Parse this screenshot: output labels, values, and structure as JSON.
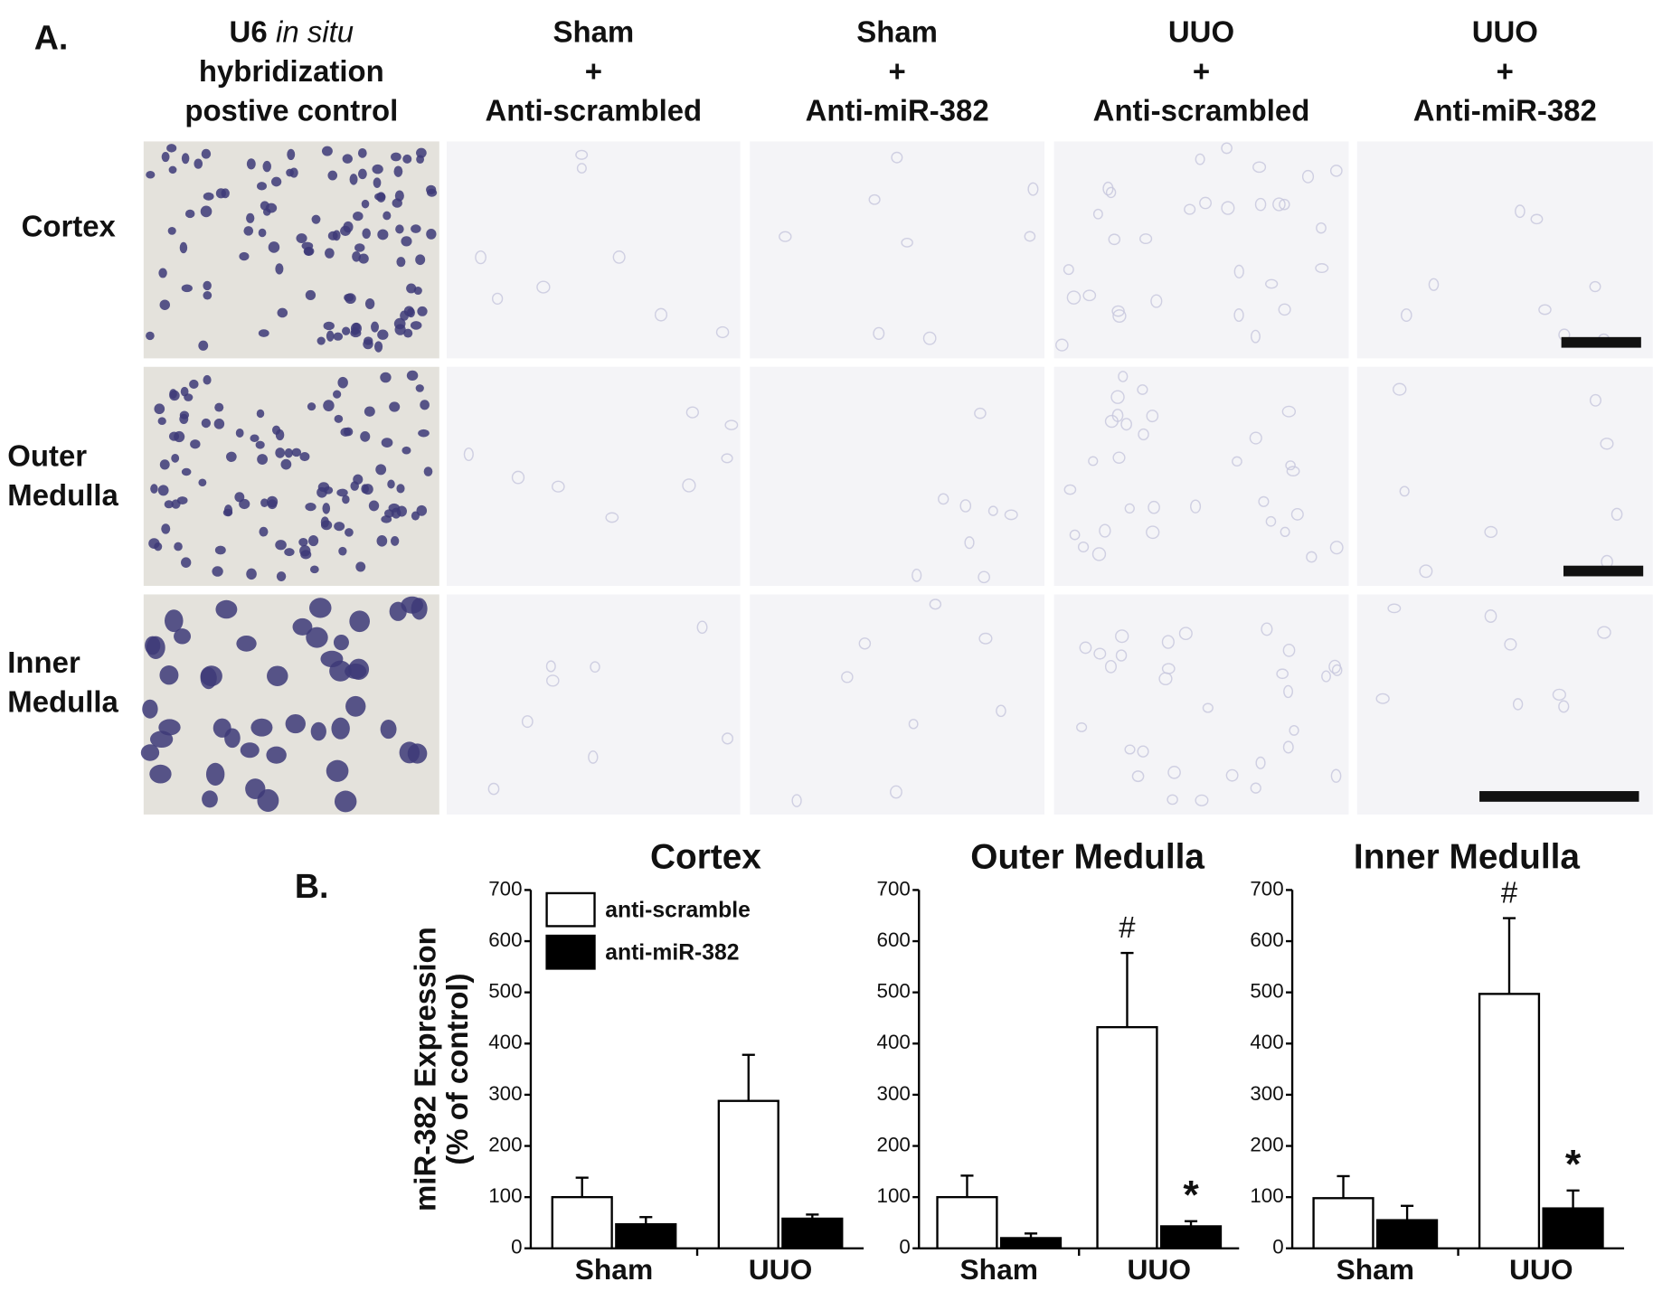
{
  "panel_a": {
    "label": "A.",
    "columns": [
      {
        "lines": [
          [
            {
              "text": "U6"
            },
            {
              "text": "in situ",
              "italic": true
            }
          ],
          [
            {
              "text": "hybridization"
            }
          ],
          [
            {
              "text": "postive control"
            }
          ]
        ]
      },
      {
        "lines": [
          [
            {
              "text": "Sham"
            }
          ],
          [
            {
              "text": "+"
            }
          ],
          [
            {
              "text": "Anti-scrambled"
            }
          ]
        ]
      },
      {
        "lines": [
          [
            {
              "text": "Sham"
            }
          ],
          [
            {
              "text": "+"
            }
          ],
          [
            {
              "text": "Anti-miR-382"
            }
          ]
        ]
      },
      {
        "lines": [
          [
            {
              "text": "UUO"
            }
          ],
          [
            {
              "text": "+"
            }
          ],
          [
            {
              "text": "Anti-scrambled"
            }
          ]
        ]
      },
      {
        "lines": [
          [
            {
              "text": "UUO"
            }
          ],
          [
            {
              "text": "+"
            }
          ],
          [
            {
              "text": "Anti-miR-382"
            }
          ]
        ]
      }
    ],
    "rows": [
      [
        "Cortex"
      ],
      [
        "Outer",
        "Medulla"
      ],
      [
        "Inner",
        "Medulla"
      ]
    ]
  },
  "panel_b_label": "B.",
  "chart_data": [
    {
      "type": "bar",
      "title": "Cortex",
      "y_label": [
        "miR-382 Expression",
        "(% of control)"
      ],
      "categories": [
        "Sham",
        "UUO"
      ],
      "legend": "upper left",
      "series": [
        {
          "name": "anti-scramble",
          "color": "#ffffff",
          "values": [
            100,
            288
          ],
          "errors": [
            38,
            90
          ]
        },
        {
          "name": "anti-miR-382",
          "color": "#000000",
          "values": [
            47,
            58
          ],
          "errors": [
            14,
            8
          ]
        }
      ],
      "ylim": [
        0,
        700
      ],
      "yticks": [
        0,
        100,
        200,
        300,
        400,
        500,
        600,
        700
      ],
      "annotations": []
    },
    {
      "type": "bar",
      "title": "Outer Medulla",
      "categories": [
        "Sham",
        "UUO"
      ],
      "series": [
        {
          "color": "#ffffff",
          "values": [
            100,
            432
          ],
          "errors": [
            42,
            145
          ]
        },
        {
          "color": "#000000",
          "values": [
            20,
            43
          ],
          "errors": [
            9,
            10
          ]
        }
      ],
      "ylim": [
        0,
        700
      ],
      "yticks": [
        0,
        100,
        200,
        300,
        400,
        500,
        600,
        700
      ],
      "annotations": [
        {
          "text": "#",
          "series": 0,
          "category": 1
        },
        {
          "text": "*",
          "series": 1,
          "category": 1
        }
      ]
    },
    {
      "type": "bar",
      "title": "Inner Medulla",
      "categories": [
        "Sham",
        "UUO"
      ],
      "series": [
        {
          "color": "#ffffff",
          "values": [
            98,
            497
          ],
          "errors": [
            43,
            148
          ]
        },
        {
          "color": "#000000",
          "values": [
            55,
            78
          ],
          "errors": [
            28,
            35
          ]
        }
      ],
      "ylim": [
        0,
        700
      ],
      "yticks": [
        0,
        100,
        200,
        300,
        400,
        500,
        600,
        700
      ],
      "annotations": [
        {
          "text": "#",
          "series": 0,
          "category": 1
        },
        {
          "text": "*",
          "series": 1,
          "category": 1
        }
      ]
    }
  ]
}
